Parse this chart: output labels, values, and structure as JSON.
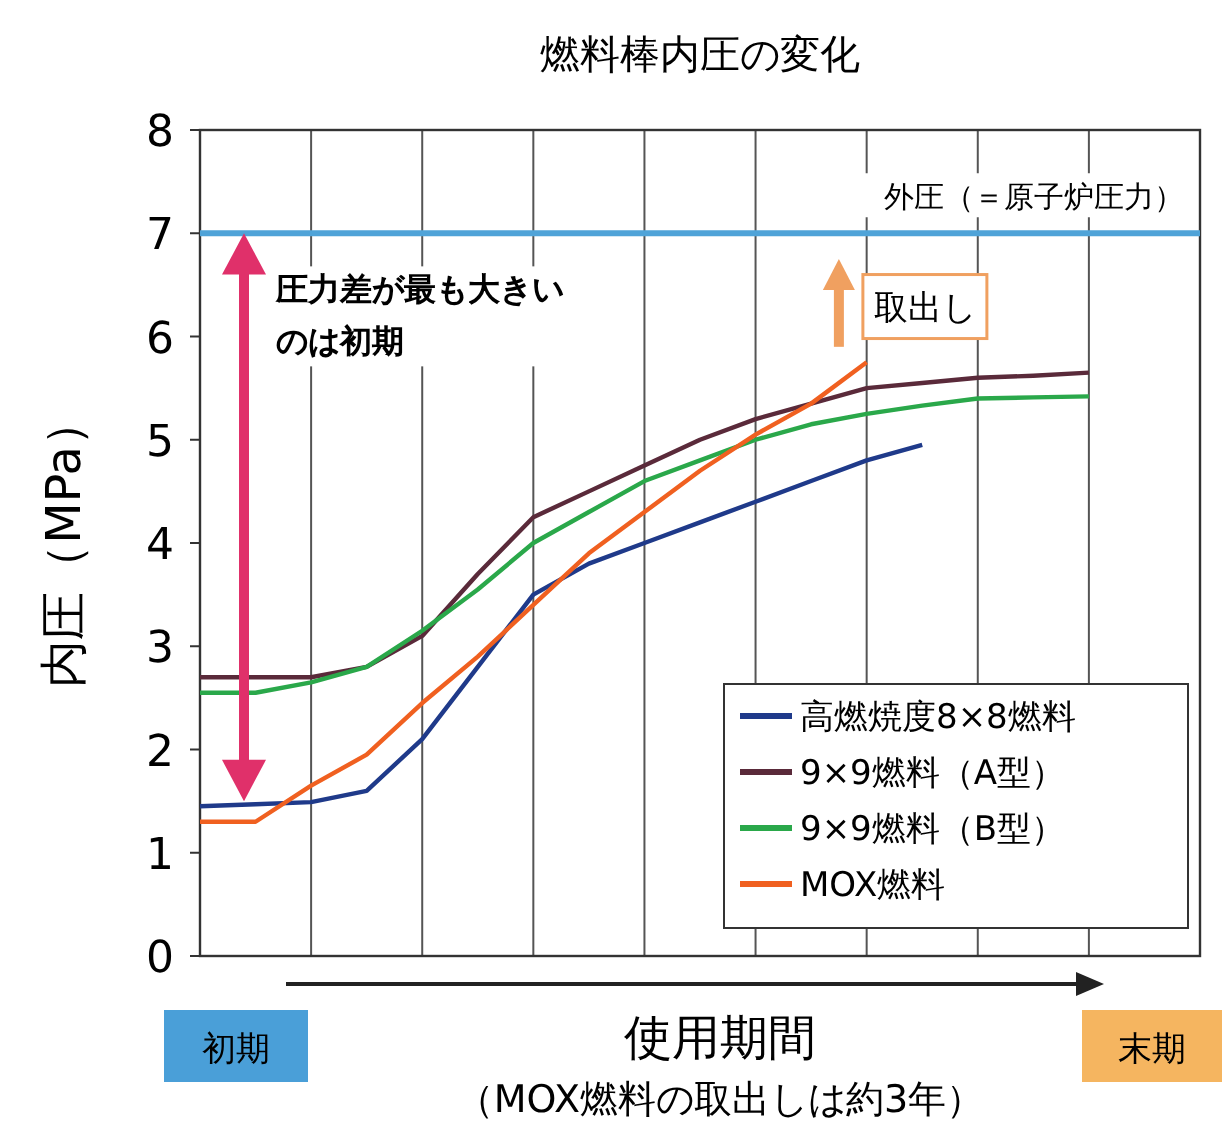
{
  "chart_data": {
    "type": "line",
    "title": "燃料棒内圧の変化",
    "ylabel": "内圧（MPa）",
    "xlabel": "使用期間",
    "annotations": [
      "圧力差が最も大きいのは初期",
      "取出し",
      "初期",
      "末期",
      "（MOX燃料の取出しは約3年）"
    ],
    "categories": [
      null,
      null,
      null,
      null,
      null,
      null,
      null,
      null,
      null,
      null,
      null,
      null,
      null,
      null,
      null,
      null,
      null,
      null,
      null
    ],
    "ylim": [
      0,
      8
    ],
    "yticks": [
      0,
      1,
      2,
      3,
      4,
      5,
      6,
      7,
      8
    ],
    "tick_labels": "y",
    "grid": "x",
    "legend": "bottom right",
    "marker": "none",
    "line_style": "solid",
    "ref_lines": [
      {
        "axis": "y",
        "value": 7,
        "label": "外圧（＝原子炉圧力）",
        "color": "#4fa3d8"
      }
    ],
    "series": [
      {
        "name": "高燃焼度8×8燃料",
        "color": "#1f3a8a",
        "values": [
          1.45,
          1.47,
          1.49,
          1.6,
          2.1,
          2.8,
          3.5,
          3.8,
          4.0,
          4.2,
          4.4,
          4.6,
          4.8,
          4.95,
          null,
          null,
          null,
          null,
          null
        ]
      },
      {
        "name": "9×9燃料（A型）",
        "color": "#5a2a3a",
        "values": [
          2.7,
          2.7,
          2.7,
          2.8,
          3.1,
          3.7,
          4.25,
          4.5,
          4.75,
          5.0,
          5.2,
          5.35,
          5.5,
          5.55,
          5.6,
          5.62,
          5.65,
          null,
          null
        ]
      },
      {
        "name": "9×9燃料（B型）",
        "color": "#2aa84a",
        "values": [
          2.55,
          2.55,
          2.65,
          2.8,
          3.15,
          3.55,
          4.0,
          4.3,
          4.6,
          4.8,
          5.0,
          5.15,
          5.25,
          5.33,
          5.4,
          5.41,
          5.42,
          null,
          null
        ]
      },
      {
        "name": "MOX燃料",
        "color": "#f06020",
        "values": [
          1.3,
          1.3,
          1.65,
          1.95,
          2.45,
          2.9,
          3.4,
          3.9,
          4.3,
          4.7,
          5.05,
          5.35,
          5.75,
          null,
          null,
          null,
          null,
          null,
          null
        ]
      }
    ]
  }
}
